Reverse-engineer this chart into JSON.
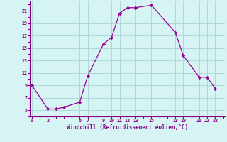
{
  "x": [
    0,
    2,
    3,
    4,
    6,
    7,
    9,
    10,
    11,
    12,
    13,
    15,
    18,
    19,
    21,
    22,
    23
  ],
  "y": [
    9.0,
    5.2,
    5.2,
    5.5,
    6.3,
    10.5,
    15.7,
    16.7,
    20.6,
    21.5,
    21.5,
    21.9,
    17.5,
    13.8,
    10.3,
    10.3,
    8.5
  ],
  "xticks": [
    0,
    2,
    6,
    7,
    9,
    10,
    11,
    12,
    13,
    15,
    18,
    19,
    21,
    22,
    23
  ],
  "yticks": [
    5,
    7,
    9,
    11,
    13,
    15,
    17,
    19,
    21
  ],
  "xlim": [
    -0.3,
    24.2
  ],
  "ylim": [
    4.2,
    22.5
  ],
  "line_color": "#990099",
  "marker": "D",
  "marker_size": 2.2,
  "bg_color": "#d6f4f4",
  "grid_color": "#b0d8d8",
  "xlabel": "Windchill (Refroidissement éolien,°C)",
  "xlabel_color": "#880088",
  "tick_color": "#880088",
  "axis_color": "#880088"
}
